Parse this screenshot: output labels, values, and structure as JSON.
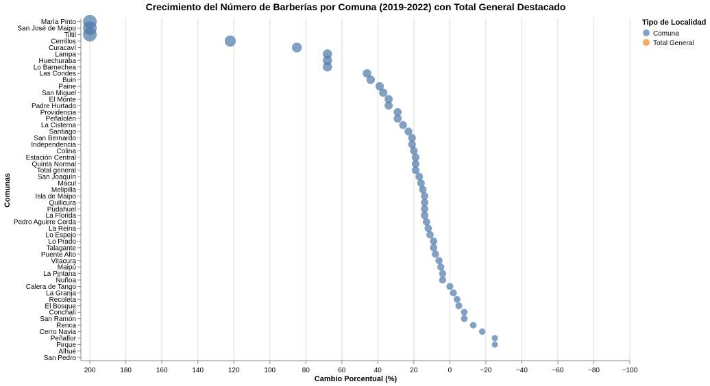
{
  "chart_data": {
    "type": "scatter",
    "title": "Crecimiento del Número de Barberías por Comuna (2019-2022) con Total General Destacado",
    "xlabel": "Cambio Porcentual (%)",
    "ylabel": "Comunas",
    "xlim": [
      205,
      -100
    ],
    "x_reversed": true,
    "x_ticks": [
      200,
      180,
      160,
      140,
      120,
      100,
      80,
      60,
      40,
      20,
      0,
      -20,
      -40,
      -60,
      -80,
      -100
    ],
    "x_tick_labels": [
      "200",
      "180",
      "160",
      "140",
      "120",
      "100",
      "80",
      "60",
      "40",
      "20",
      "0",
      "−20",
      "−40",
      "−60",
      "−80",
      "−100"
    ],
    "grid": true,
    "legend": {
      "title": "Tipo de Localidad",
      "position": "top-right",
      "entries": [
        {
          "label": "Comuna",
          "color": "#4c78a8"
        },
        {
          "label": "Total General",
          "color": "#f58518"
        }
      ]
    },
    "categories": [
      "María Pinto",
      "San José de Maipo",
      "Tiltil",
      "Cerrillos",
      "Curacaví",
      "Lampa",
      "Huechuraba",
      "Lo Barnechea",
      "Las Condes",
      "Buin",
      "Paine",
      "San Miguel",
      "El Monte",
      "Padre Hurtado",
      "Providencia",
      "Peñalolén",
      "La Cisterna",
      "Santiago",
      "San Bernardo",
      "Independencia",
      "Colina",
      "Estación Central",
      "Quinta Normal",
      "Total general",
      "San Joaquín",
      "Macul",
      "Melipilla",
      "Isla de Maipo",
      "Quilicura",
      "Pudahuel",
      "La Florida",
      "Pedro Aguirre Cerda",
      "La Reina",
      "Lo Espejo",
      "Lo Prado",
      "Talagante",
      "Puente Alto",
      "Vitacura",
      "Maipú",
      "La Pintana",
      "Ñuñoa",
      "Calera de Tango",
      "La Granja",
      "Recoleta",
      "El Bosque",
      "Conchalí",
      "San Ramón",
      "Renca",
      "Cerro Navia",
      "Peñaflor",
      "Pirque",
      "Alhué",
      "San Pedro"
    ],
    "points": [
      {
        "comuna": "María Pinto",
        "value": 200,
        "tipo": "Comuna"
      },
      {
        "comuna": "San José de Maipo",
        "value": 200,
        "tipo": "Comuna"
      },
      {
        "comuna": "Tiltil",
        "value": 200,
        "tipo": "Comuna"
      },
      {
        "comuna": "Cerrillos",
        "value": 122,
        "tipo": "Comuna"
      },
      {
        "comuna": "Curacaví",
        "value": 85,
        "tipo": "Comuna"
      },
      {
        "comuna": "Lampa",
        "value": 68,
        "tipo": "Comuna"
      },
      {
        "comuna": "Huechuraba",
        "value": 68,
        "tipo": "Comuna"
      },
      {
        "comuna": "Lo Barnechea",
        "value": 68,
        "tipo": "Comuna"
      },
      {
        "comuna": "Las Condes",
        "value": 46,
        "tipo": "Comuna"
      },
      {
        "comuna": "Buin",
        "value": 44,
        "tipo": "Comuna"
      },
      {
        "comuna": "Paine",
        "value": 39,
        "tipo": "Comuna"
      },
      {
        "comuna": "San Miguel",
        "value": 37,
        "tipo": "Comuna"
      },
      {
        "comuna": "El Monte",
        "value": 34,
        "tipo": "Comuna"
      },
      {
        "comuna": "Padre Hurtado",
        "value": 34,
        "tipo": "Comuna"
      },
      {
        "comuna": "Providencia",
        "value": 29,
        "tipo": "Comuna"
      },
      {
        "comuna": "Peñalolén",
        "value": 29,
        "tipo": "Comuna"
      },
      {
        "comuna": "La Cisterna",
        "value": 26,
        "tipo": "Comuna"
      },
      {
        "comuna": "Santiago",
        "value": 23,
        "tipo": "Comuna"
      },
      {
        "comuna": "San Bernardo",
        "value": 21,
        "tipo": "Comuna"
      },
      {
        "comuna": "Independencia",
        "value": 21,
        "tipo": "Comuna"
      },
      {
        "comuna": "Colina",
        "value": 20,
        "tipo": "Comuna"
      },
      {
        "comuna": "Estación Central",
        "value": 19,
        "tipo": "Comuna"
      },
      {
        "comuna": "Quinta Normal",
        "value": 19,
        "tipo": "Comuna"
      },
      {
        "comuna": "Total general",
        "value": 19,
        "tipo": "Comuna"
      },
      {
        "comuna": "San Joaquín",
        "value": 17,
        "tipo": "Comuna"
      },
      {
        "comuna": "Macul",
        "value": 16,
        "tipo": "Comuna"
      },
      {
        "comuna": "Melipilla",
        "value": 15,
        "tipo": "Comuna"
      },
      {
        "comuna": "Isla de Maipo",
        "value": 14,
        "tipo": "Comuna"
      },
      {
        "comuna": "Quilicura",
        "value": 14,
        "tipo": "Comuna"
      },
      {
        "comuna": "Pudahuel",
        "value": 14,
        "tipo": "Comuna"
      },
      {
        "comuna": "La Florida",
        "value": 14,
        "tipo": "Comuna"
      },
      {
        "comuna": "Pedro Aguirre Cerda",
        "value": 13,
        "tipo": "Comuna"
      },
      {
        "comuna": "La Reina",
        "value": 12,
        "tipo": "Comuna"
      },
      {
        "comuna": "Lo Espejo",
        "value": 11,
        "tipo": "Comuna"
      },
      {
        "comuna": "Lo Prado",
        "value": 9,
        "tipo": "Comuna"
      },
      {
        "comuna": "Talagante",
        "value": 9,
        "tipo": "Comuna"
      },
      {
        "comuna": "Puente Alto",
        "value": 8,
        "tipo": "Comuna"
      },
      {
        "comuna": "Vitacura",
        "value": 6,
        "tipo": "Comuna"
      },
      {
        "comuna": "Maipú",
        "value": 5,
        "tipo": "Comuna"
      },
      {
        "comuna": "La Pintana",
        "value": 4,
        "tipo": "Comuna"
      },
      {
        "comuna": "Ñuñoa",
        "value": 4,
        "tipo": "Comuna"
      },
      {
        "comuna": "Calera de Tango",
        "value": 0,
        "tipo": "Comuna"
      },
      {
        "comuna": "La Granja",
        "value": -2,
        "tipo": "Comuna"
      },
      {
        "comuna": "Recoleta",
        "value": -4,
        "tipo": "Comuna"
      },
      {
        "comuna": "El Bosque",
        "value": -5,
        "tipo": "Comuna"
      },
      {
        "comuna": "Conchalí",
        "value": -8,
        "tipo": "Comuna"
      },
      {
        "comuna": "San Ramón",
        "value": -8,
        "tipo": "Comuna"
      },
      {
        "comuna": "Renca",
        "value": -13,
        "tipo": "Comuna"
      },
      {
        "comuna": "Cerro Navia",
        "value": -18,
        "tipo": "Comuna"
      },
      {
        "comuna": "Peñaflor",
        "value": -25,
        "tipo": "Comuna"
      },
      {
        "comuna": "Pirque",
        "value": -25,
        "tipo": "Comuna"
      }
    ]
  }
}
